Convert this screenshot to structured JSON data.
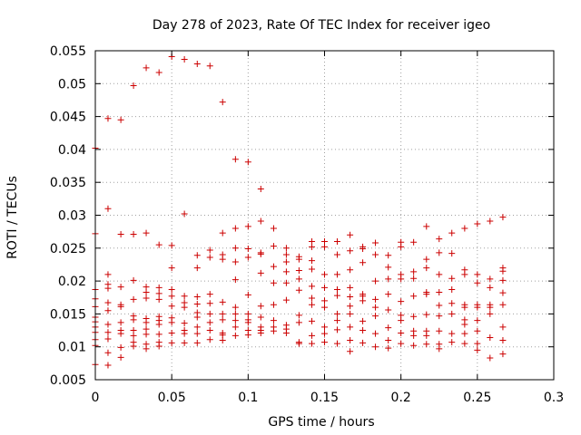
{
  "chart_data": {
    "type": "scatter",
    "title": "Day 278 of 2023, Rate Of TEC Index for receiver igeo",
    "xlabel": "GPS time / hours",
    "ylabel": "ROTI / TECUs",
    "xlim": [
      0,
      0.3
    ],
    "ylim": [
      0.005,
      0.055
    ],
    "xticks": [
      "0",
      "0.05",
      "0.1",
      "0.15",
      "0.2",
      "0.25",
      "0.3"
    ],
    "yticks": [
      "0.005",
      "0.01",
      "0.015",
      "0.02",
      "0.025",
      "0.03",
      "0.035",
      "0.04",
      "0.045",
      "0.05",
      "0.055"
    ],
    "grid": true,
    "marker": "plus",
    "color": "#cc0000",
    "points": [
      [
        0.0,
        0.0402
      ],
      [
        0.0,
        0.0272
      ],
      [
        0.0,
        0.0187
      ],
      [
        0.0,
        0.0173
      ],
      [
        0.0,
        0.0161
      ],
      [
        0.0,
        0.0145
      ],
      [
        0.0,
        0.0138
      ],
      [
        0.0,
        0.013
      ],
      [
        0.0,
        0.0122
      ],
      [
        0.0,
        0.0111
      ],
      [
        0.0,
        0.0102
      ],
      [
        0.0,
        0.0073
      ],
      [
        0.0083,
        0.0447
      ],
      [
        0.0083,
        0.031
      ],
      [
        0.0083,
        0.021
      ],
      [
        0.0083,
        0.0195
      ],
      [
        0.0083,
        0.0189
      ],
      [
        0.0083,
        0.0167
      ],
      [
        0.0083,
        0.0155
      ],
      [
        0.0083,
        0.0134
      ],
      [
        0.0083,
        0.0122
      ],
      [
        0.0083,
        0.0112
      ],
      [
        0.0083,
        0.0091
      ],
      [
        0.0083,
        0.0072
      ],
      [
        0.0167,
        0.0445
      ],
      [
        0.0167,
        0.0271
      ],
      [
        0.0167,
        0.0191
      ],
      [
        0.0167,
        0.0164
      ],
      [
        0.0167,
        0.0161
      ],
      [
        0.0167,
        0.0137
      ],
      [
        0.0167,
        0.0125
      ],
      [
        0.0167,
        0.012
      ],
      [
        0.0167,
        0.0099
      ],
      [
        0.0167,
        0.0084
      ],
      [
        0.025,
        0.0497
      ],
      [
        0.025,
        0.0271
      ],
      [
        0.025,
        0.0201
      ],
      [
        0.025,
        0.0172
      ],
      [
        0.025,
        0.0147
      ],
      [
        0.025,
        0.0141
      ],
      [
        0.025,
        0.0125
      ],
      [
        0.025,
        0.0117
      ],
      [
        0.025,
        0.0107
      ],
      [
        0.025,
        0.0101
      ],
      [
        0.0333,
        0.0524
      ],
      [
        0.0333,
        0.0273
      ],
      [
        0.0333,
        0.0191
      ],
      [
        0.0333,
        0.0183
      ],
      [
        0.0333,
        0.0174
      ],
      [
        0.0333,
        0.0143
      ],
      [
        0.0333,
        0.0137
      ],
      [
        0.0333,
        0.0127
      ],
      [
        0.0333,
        0.0119
      ],
      [
        0.0333,
        0.0104
      ],
      [
        0.0333,
        0.0097
      ],
      [
        0.0417,
        0.0517
      ],
      [
        0.0417,
        0.0255
      ],
      [
        0.0417,
        0.019
      ],
      [
        0.0417,
        0.0181
      ],
      [
        0.0417,
        0.0172
      ],
      [
        0.0417,
        0.0146
      ],
      [
        0.0417,
        0.014
      ],
      [
        0.0417,
        0.0134
      ],
      [
        0.0417,
        0.0119
      ],
      [
        0.0417,
        0.0107
      ],
      [
        0.0417,
        0.0101
      ],
      [
        0.05,
        0.0541
      ],
      [
        0.05,
        0.0254
      ],
      [
        0.05,
        0.022
      ],
      [
        0.05,
        0.0187
      ],
      [
        0.05,
        0.0177
      ],
      [
        0.05,
        0.0162
      ],
      [
        0.05,
        0.0144
      ],
      [
        0.05,
        0.0137
      ],
      [
        0.05,
        0.0121
      ],
      [
        0.05,
        0.0106
      ],
      [
        0.0583,
        0.0537
      ],
      [
        0.0583,
        0.0302
      ],
      [
        0.0583,
        0.0177
      ],
      [
        0.0583,
        0.0167
      ],
      [
        0.0583,
        0.016
      ],
      [
        0.0583,
        0.0136
      ],
      [
        0.0583,
        0.0125
      ],
      [
        0.0583,
        0.012
      ],
      [
        0.0583,
        0.0106
      ],
      [
        0.0667,
        0.053
      ],
      [
        0.0667,
        0.0239
      ],
      [
        0.0667,
        0.022
      ],
      [
        0.0667,
        0.0176
      ],
      [
        0.0667,
        0.0165
      ],
      [
        0.0667,
        0.0152
      ],
      [
        0.0667,
        0.0145
      ],
      [
        0.0667,
        0.013
      ],
      [
        0.0667,
        0.012
      ],
      [
        0.0667,
        0.0106
      ],
      [
        0.075,
        0.0527
      ],
      [
        0.075,
        0.0247
      ],
      [
        0.075,
        0.0236
      ],
      [
        0.075,
        0.018
      ],
      [
        0.075,
        0.0166
      ],
      [
        0.075,
        0.015
      ],
      [
        0.075,
        0.0137
      ],
      [
        0.075,
        0.0125
      ],
      [
        0.075,
        0.0111
      ],
      [
        0.0833,
        0.0472
      ],
      [
        0.0833,
        0.0273
      ],
      [
        0.0833,
        0.024
      ],
      [
        0.0833,
        0.0233
      ],
      [
        0.0833,
        0.0168
      ],
      [
        0.0833,
        0.015
      ],
      [
        0.0833,
        0.0141
      ],
      [
        0.0833,
        0.0121
      ],
      [
        0.0833,
        0.0118
      ],
      [
        0.0833,
        0.011
      ],
      [
        0.0917,
        0.0385
      ],
      [
        0.0917,
        0.028
      ],
      [
        0.0917,
        0.025
      ],
      [
        0.0917,
        0.0229
      ],
      [
        0.0917,
        0.0202
      ],
      [
        0.0917,
        0.016
      ],
      [
        0.0917,
        0.015
      ],
      [
        0.0917,
        0.014
      ],
      [
        0.0917,
        0.013
      ],
      [
        0.0917,
        0.0117
      ],
      [
        0.1,
        0.0381
      ],
      [
        0.1,
        0.0283
      ],
      [
        0.1,
        0.0249
      ],
      [
        0.1,
        0.0236
      ],
      [
        0.1,
        0.0179
      ],
      [
        0.1,
        0.015
      ],
      [
        0.1,
        0.0141
      ],
      [
        0.1,
        0.0137
      ],
      [
        0.1,
        0.0125
      ],
      [
        0.1,
        0.0118
      ],
      [
        0.1083,
        0.034
      ],
      [
        0.1083,
        0.0291
      ],
      [
        0.1083,
        0.0243
      ],
      [
        0.1083,
        0.0241
      ],
      [
        0.1083,
        0.0212
      ],
      [
        0.1083,
        0.0162
      ],
      [
        0.1083,
        0.0145
      ],
      [
        0.1083,
        0.013
      ],
      [
        0.1083,
        0.0125
      ],
      [
        0.1083,
        0.0121
      ],
      [
        0.1167,
        0.028
      ],
      [
        0.1167,
        0.0253
      ],
      [
        0.1167,
        0.0222
      ],
      [
        0.1167,
        0.0197
      ],
      [
        0.1167,
        0.0164
      ],
      [
        0.1167,
        0.014
      ],
      [
        0.1167,
        0.013
      ],
      [
        0.1167,
        0.0124
      ],
      [
        0.125,
        0.025
      ],
      [
        0.125,
        0.024
      ],
      [
        0.125,
        0.0229
      ],
      [
        0.125,
        0.0214
      ],
      [
        0.125,
        0.0197
      ],
      [
        0.125,
        0.0171
      ],
      [
        0.125,
        0.0133
      ],
      [
        0.125,
        0.0127
      ],
      [
        0.125,
        0.0121
      ],
      [
        0.1333,
        0.0237
      ],
      [
        0.1333,
        0.0233
      ],
      [
        0.1333,
        0.0216
      ],
      [
        0.1333,
        0.0203
      ],
      [
        0.1333,
        0.0186
      ],
      [
        0.1333,
        0.0148
      ],
      [
        0.1333,
        0.0137
      ],
      [
        0.1333,
        0.0107
      ],
      [
        0.1333,
        0.0105
      ],
      [
        0.1417,
        0.026
      ],
      [
        0.1417,
        0.0252
      ],
      [
        0.1417,
        0.0231
      ],
      [
        0.1417,
        0.0218
      ],
      [
        0.1417,
        0.0192
      ],
      [
        0.1417,
        0.0174
      ],
      [
        0.1417,
        0.0164
      ],
      [
        0.1417,
        0.0139
      ],
      [
        0.1417,
        0.0117
      ],
      [
        0.1417,
        0.0105
      ],
      [
        0.15,
        0.026
      ],
      [
        0.15,
        0.0252
      ],
      [
        0.15,
        0.021
      ],
      [
        0.15,
        0.019
      ],
      [
        0.15,
        0.017
      ],
      [
        0.15,
        0.016
      ],
      [
        0.15,
        0.013
      ],
      [
        0.15,
        0.012
      ],
      [
        0.15,
        0.0107
      ],
      [
        0.1583,
        0.026
      ],
      [
        0.1583,
        0.024
      ],
      [
        0.1583,
        0.021
      ],
      [
        0.1583,
        0.0187
      ],
      [
        0.1583,
        0.0178
      ],
      [
        0.1583,
        0.015
      ],
      [
        0.1583,
        0.014
      ],
      [
        0.1583,
        0.0126
      ],
      [
        0.1583,
        0.0105
      ],
      [
        0.1667,
        0.027
      ],
      [
        0.1667,
        0.0246
      ],
      [
        0.1667,
        0.0217
      ],
      [
        0.1667,
        0.019
      ],
      [
        0.1667,
        0.0176
      ],
      [
        0.1667,
        0.0162
      ],
      [
        0.1667,
        0.015
      ],
      [
        0.1667,
        0.013
      ],
      [
        0.1667,
        0.011
      ],
      [
        0.1667,
        0.0093
      ],
      [
        0.175,
        0.0252
      ],
      [
        0.175,
        0.0249
      ],
      [
        0.175,
        0.0228
      ],
      [
        0.175,
        0.018
      ],
      [
        0.175,
        0.0177
      ],
      [
        0.175,
        0.017
      ],
      [
        0.175,
        0.0139
      ],
      [
        0.175,
        0.0125
      ],
      [
        0.175,
        0.0106
      ],
      [
        0.1833,
        0.0258
      ],
      [
        0.1833,
        0.024
      ],
      [
        0.1833,
        0.02
      ],
      [
        0.1833,
        0.0172
      ],
      [
        0.1833,
        0.016
      ],
      [
        0.1833,
        0.0147
      ],
      [
        0.1833,
        0.012
      ],
      [
        0.1833,
        0.01
      ],
      [
        0.1917,
        0.0239
      ],
      [
        0.1917,
        0.0221
      ],
      [
        0.1917,
        0.0203
      ],
      [
        0.1917,
        0.018
      ],
      [
        0.1917,
        0.0156
      ],
      [
        0.1917,
        0.0129
      ],
      [
        0.1917,
        0.011
      ],
      [
        0.1917,
        0.0098
      ],
      [
        0.2,
        0.0259
      ],
      [
        0.2,
        0.0252
      ],
      [
        0.2,
        0.021
      ],
      [
        0.2,
        0.0203
      ],
      [
        0.2,
        0.0169
      ],
      [
        0.2,
        0.0148
      ],
      [
        0.2,
        0.014
      ],
      [
        0.2,
        0.0121
      ],
      [
        0.2,
        0.0105
      ],
      [
        0.2083,
        0.0259
      ],
      [
        0.2083,
        0.0214
      ],
      [
        0.2083,
        0.0204
      ],
      [
        0.2083,
        0.0177
      ],
      [
        0.2083,
        0.0146
      ],
      [
        0.2083,
        0.0124
      ],
      [
        0.2083,
        0.0117
      ],
      [
        0.2083,
        0.0102
      ],
      [
        0.2167,
        0.0283
      ],
      [
        0.2167,
        0.0233
      ],
      [
        0.2167,
        0.022
      ],
      [
        0.2167,
        0.0183
      ],
      [
        0.2167,
        0.018
      ],
      [
        0.2167,
        0.0149
      ],
      [
        0.2167,
        0.0124
      ],
      [
        0.2167,
        0.0117
      ],
      [
        0.2167,
        0.0104
      ],
      [
        0.225,
        0.0264
      ],
      [
        0.225,
        0.0243
      ],
      [
        0.225,
        0.021
      ],
      [
        0.225,
        0.0183
      ],
      [
        0.225,
        0.0163
      ],
      [
        0.225,
        0.0147
      ],
      [
        0.225,
        0.0124
      ],
      [
        0.225,
        0.0104
      ],
      [
        0.225,
        0.0097
      ],
      [
        0.2333,
        0.0273
      ],
      [
        0.2333,
        0.0242
      ],
      [
        0.2333,
        0.0204
      ],
      [
        0.2333,
        0.0187
      ],
      [
        0.2333,
        0.0166
      ],
      [
        0.2333,
        0.015
      ],
      [
        0.2333,
        0.012
      ],
      [
        0.2333,
        0.0107
      ],
      [
        0.2417,
        0.028
      ],
      [
        0.2417,
        0.0217
      ],
      [
        0.2417,
        0.021
      ],
      [
        0.2417,
        0.0164
      ],
      [
        0.2417,
        0.016
      ],
      [
        0.2417,
        0.0141
      ],
      [
        0.2417,
        0.0134
      ],
      [
        0.2417,
        0.012
      ],
      [
        0.2417,
        0.0105
      ],
      [
        0.25,
        0.0287
      ],
      [
        0.25,
        0.021
      ],
      [
        0.25,
        0.0197
      ],
      [
        0.25,
        0.0164
      ],
      [
        0.25,
        0.016
      ],
      [
        0.25,
        0.014
      ],
      [
        0.25,
        0.0124
      ],
      [
        0.25,
        0.0105
      ],
      [
        0.25,
        0.0095
      ],
      [
        0.2583,
        0.0291
      ],
      [
        0.2583,
        0.0203
      ],
      [
        0.2583,
        0.019
      ],
      [
        0.2583,
        0.0164
      ],
      [
        0.2583,
        0.016
      ],
      [
        0.2583,
        0.015
      ],
      [
        0.2583,
        0.0114
      ],
      [
        0.2583,
        0.0083
      ],
      [
        0.2667,
        0.0297
      ],
      [
        0.2667,
        0.022
      ],
      [
        0.2667,
        0.0215
      ],
      [
        0.2667,
        0.0201
      ],
      [
        0.2667,
        0.0182
      ],
      [
        0.2667,
        0.0164
      ],
      [
        0.2667,
        0.013
      ],
      [
        0.2667,
        0.011
      ],
      [
        0.2667,
        0.0089
      ]
    ]
  }
}
